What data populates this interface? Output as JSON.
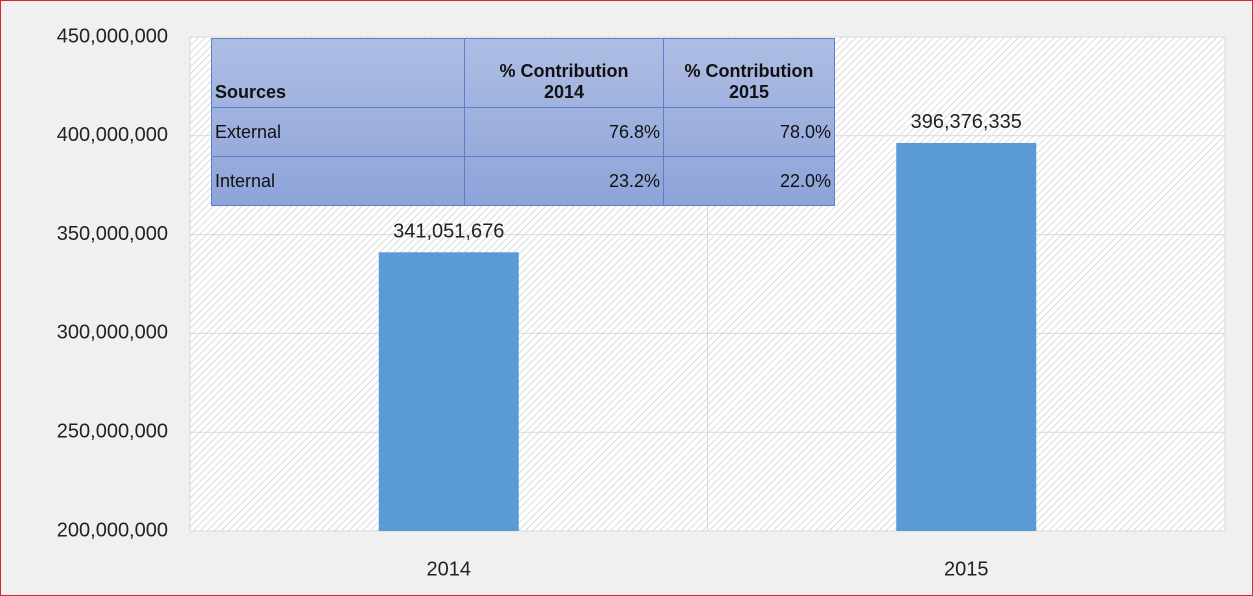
{
  "chart_data": {
    "type": "bar",
    "categories": [
      "2014",
      "2015"
    ],
    "values": [
      341051676,
      396376335
    ],
    "value_labels": [
      "341,051,676",
      "396,376,335"
    ],
    "color": "#5b9bd5",
    "ylim": [
      200000000,
      450000000
    ],
    "yticks": [
      {
        "value": 200000000,
        "label": "200,000,000"
      },
      {
        "value": 250000000,
        "label": "250,000,000"
      },
      {
        "value": 300000000,
        "label": "300,000,000"
      },
      {
        "value": 350000000,
        "label": "350,000,000"
      },
      {
        "value": 400000000,
        "label": "400,000,000"
      },
      {
        "value": 450000000,
        "label": "450,000,000"
      }
    ],
    "grid": true,
    "table": {
      "header": [
        "Sources",
        "% Contribution 2014",
        "% Contribution 2015"
      ],
      "rows": [
        [
          "External",
          "76.8%",
          "78.0%"
        ],
        [
          "Internal",
          "23.2%",
          "22.0%"
        ]
      ]
    }
  }
}
